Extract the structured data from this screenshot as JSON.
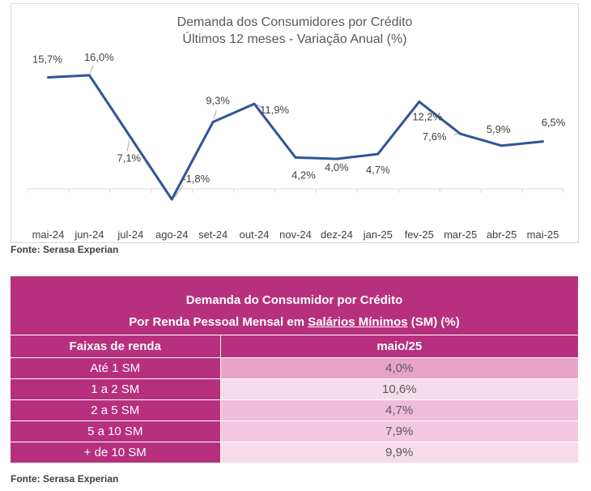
{
  "chart_data": {
    "type": "line",
    "title": "Demanda dos Consumidores por Crédito",
    "subtitle": "Últimos 12 meses - Variação Anual (%)",
    "categories": [
      "mai-24",
      "jun-24",
      "jul-24",
      "ago-24",
      "set-24",
      "out-24",
      "nov-24",
      "dez-24",
      "jan-25",
      "fev-25",
      "mar-25",
      "abr-25",
      "mai-25"
    ],
    "values": [
      15.7,
      16.0,
      7.1,
      -1.8,
      9.3,
      11.9,
      4.2,
      4.0,
      4.7,
      12.2,
      7.6,
      5.9,
      6.5
    ],
    "labels": [
      "15,7%",
      "16,0%",
      "7,1%",
      "-1,8%",
      "9,3%",
      "11,9%",
      "4,2%",
      "4,0%",
      "4,7%",
      "12,2%",
      "7,6%",
      "5,9%",
      "6,5%"
    ],
    "ylim": [
      -2,
      18
    ],
    "grid": false,
    "line_color": "#2e5597",
    "source": "Fonte: Serasa Experian"
  },
  "table": {
    "title": "Demanda do Consumidor por Crédito",
    "subtitle_pre": "Por Renda Pessoal Mensal em ",
    "subtitle_link": "Salários Mínimos",
    "subtitle_post": " (SM) (%)",
    "col_label": "Faixas de renda",
    "col_value": "maio/25",
    "rows": [
      {
        "label": "Até 1 SM",
        "value": "4,0%",
        "color": "#e8a3c9"
      },
      {
        "label": "1 a 2 SM",
        "value": "10,6%",
        "color": "#f6dceb"
      },
      {
        "label": "2 a 5 SM",
        "value": "4,7%",
        "color": "#efbcd9"
      },
      {
        "label": "5 a 10 SM",
        "value": "7,9%",
        "color": "#f2c7df"
      },
      {
        "label": "+ de 10 SM",
        "value": "9,9%",
        "color": "#f6dceb"
      }
    ],
    "header_color": "#b7307d",
    "source": "Fonte: Serasa Experian"
  }
}
